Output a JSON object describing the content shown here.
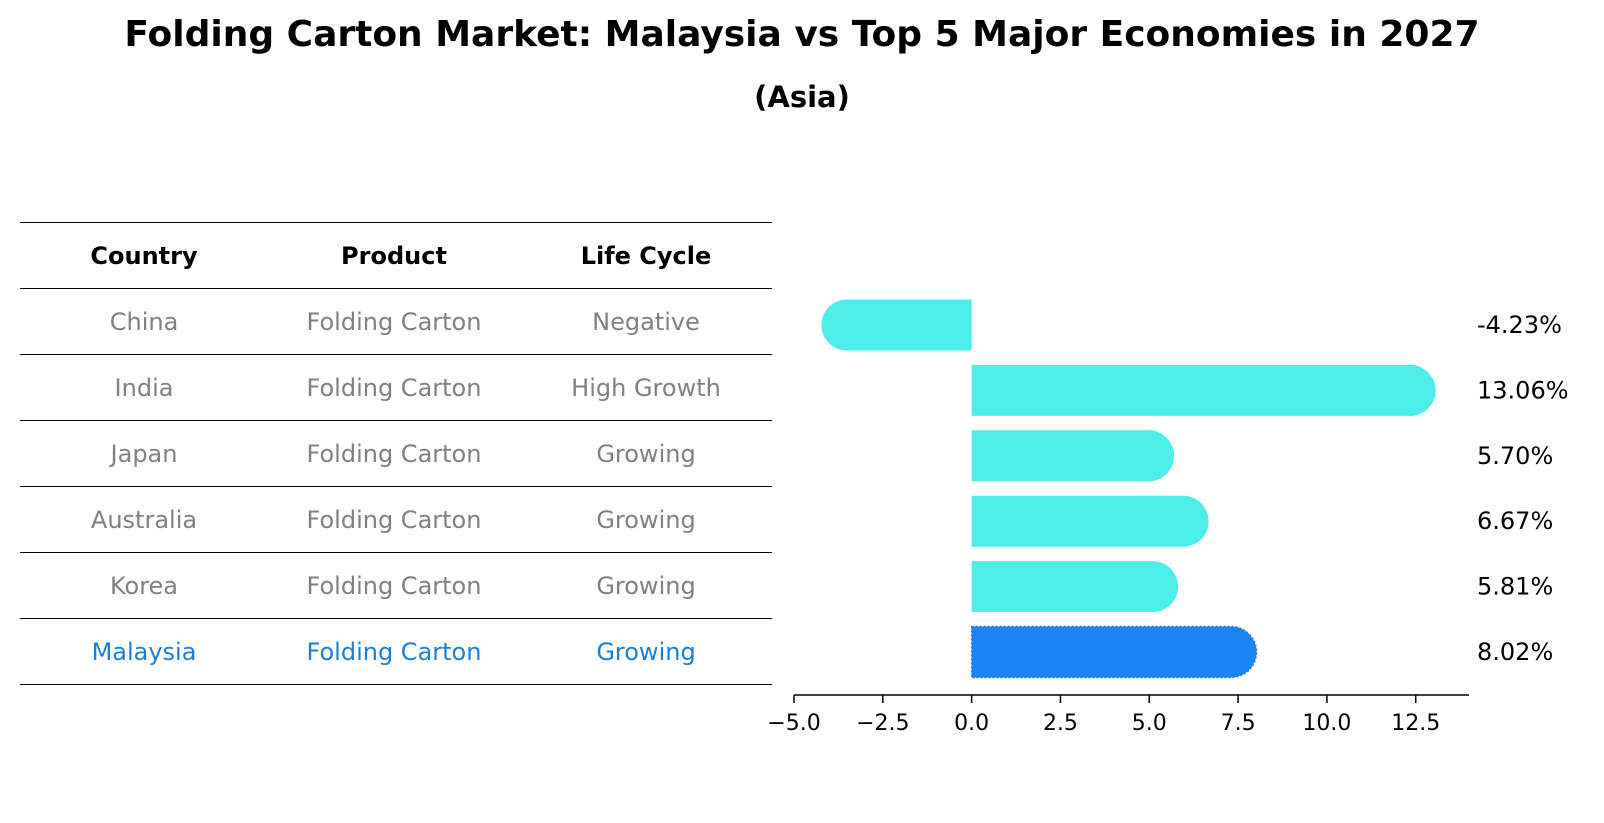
{
  "title": "Folding Carton Market: Malaysia vs Top 5 Major Economies in 2027",
  "subtitle": "(Asia)",
  "table": {
    "headers": [
      "Country",
      "Product",
      "Life Cycle"
    ],
    "rows": [
      {
        "country": "China",
        "product": "Folding Carton",
        "life_cycle": "Negative"
      },
      {
        "country": "India",
        "product": "Folding Carton",
        "life_cycle": "High Growth"
      },
      {
        "country": "Japan",
        "product": "Folding Carton",
        "life_cycle": "Growing"
      },
      {
        "country": "Australia",
        "product": "Folding Carton",
        "life_cycle": "Growing"
      },
      {
        "country": "Korea",
        "product": "Folding Carton",
        "life_cycle": "Growing"
      },
      {
        "country": "Malaysia",
        "product": "Folding Carton",
        "life_cycle": "Growing"
      }
    ]
  },
  "chart_data": {
    "type": "bar",
    "orientation": "horizontal",
    "title": "Folding Carton Market: Malaysia vs Top 5 Major Economies in 2027",
    "subtitle": "(Asia)",
    "categories": [
      "China",
      "India",
      "Japan",
      "Australia",
      "Korea",
      "Malaysia"
    ],
    "values": [
      -4.23,
      13.06,
      5.7,
      6.67,
      5.81,
      8.02
    ],
    "value_labels": [
      "-4.23%",
      "13.06%",
      "5.70%",
      "6.67%",
      "5.81%",
      "8.02%"
    ],
    "highlight": "Malaysia",
    "xlim": [
      -5.0,
      14.0
    ],
    "xticks": [
      -5.0,
      -2.5,
      0.0,
      2.5,
      5.0,
      7.5,
      10.0,
      12.5
    ],
    "xtick_labels": [
      "−5.0",
      "−2.5",
      "0.0",
      "2.5",
      "5.0",
      "7.5",
      "10.0",
      "12.5"
    ],
    "colors": {
      "default": "#4deeea",
      "highlight": "#1984f2"
    }
  }
}
